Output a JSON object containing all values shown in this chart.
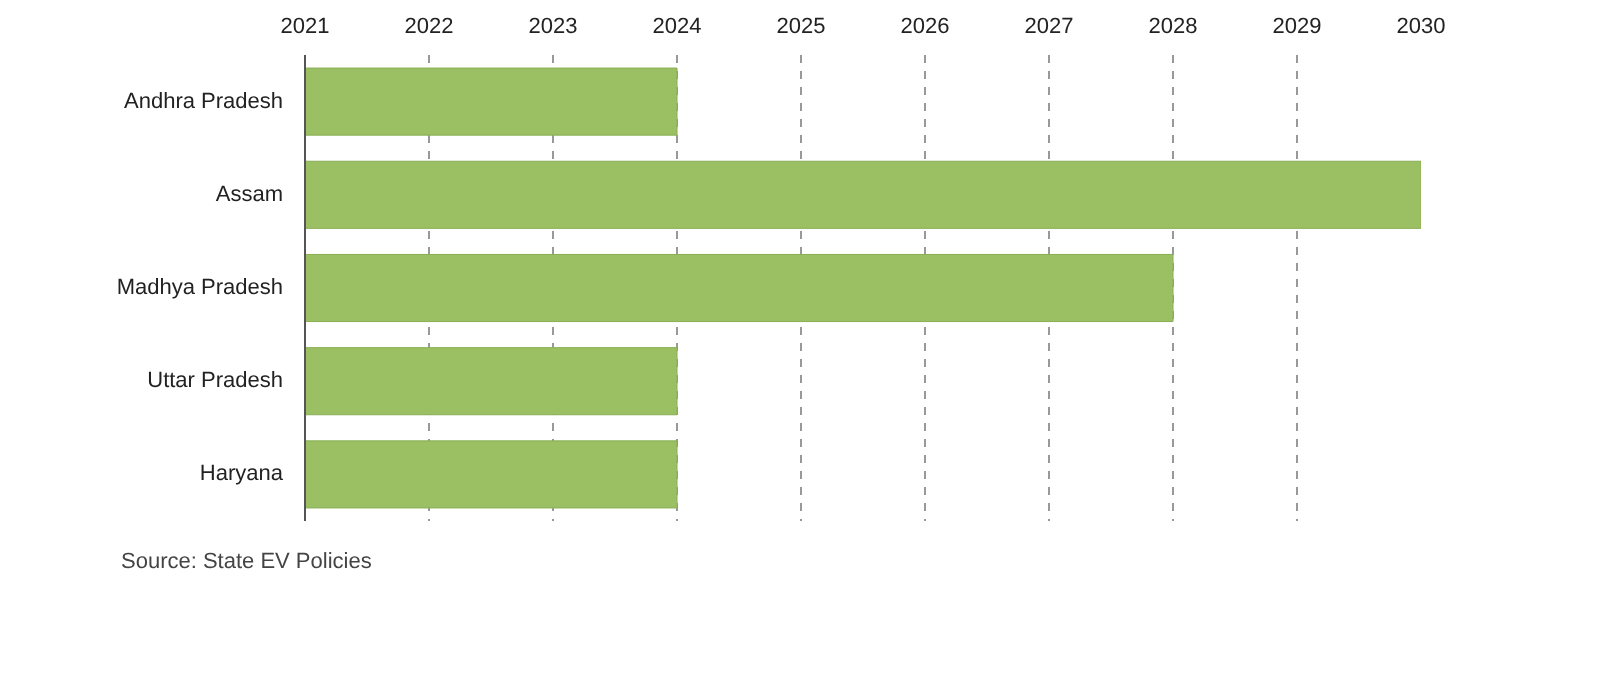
{
  "chart_data": {
    "type": "bar",
    "orientation": "horizontal",
    "categories": [
      "Andhra Pradesh",
      "Assam",
      "Madhya Pradesh",
      "Uttar Pradesh",
      "Haryana"
    ],
    "base": [
      2021,
      2021,
      2021,
      2021,
      2021
    ],
    "values": [
      3,
      9,
      7,
      3,
      3
    ],
    "color": "#9bbf63",
    "xlim": [
      2021,
      2030
    ],
    "xticks": [
      2021,
      2022,
      2023,
      2024,
      2025,
      2026,
      2027,
      2028,
      2029,
      2030
    ],
    "grid": "x",
    "annotations": [
      "Source: State EV Policies"
    ]
  }
}
